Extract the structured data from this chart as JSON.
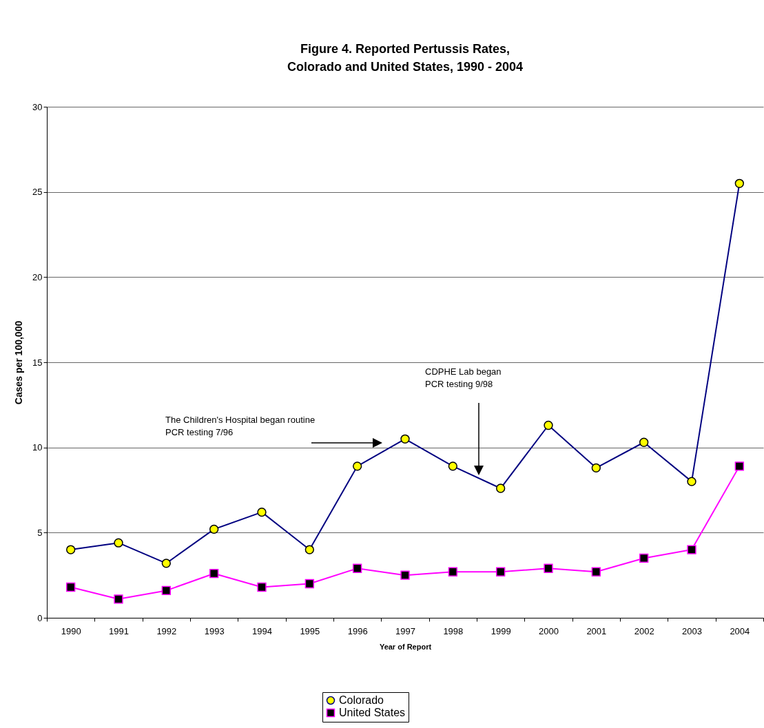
{
  "chart_data": {
    "type": "line",
    "title": "Figure 4.  Reported Pertussis Rates,\nColorado and United States, 1990 - 2004",
    "xlabel": "Year of Report",
    "ylabel": "Cases per 100,000",
    "categories": [
      "1990",
      "1991",
      "1992",
      "1993",
      "1994",
      "1995",
      "1996",
      "1997",
      "1998",
      "1999",
      "2000",
      "2001",
      "2002",
      "2003",
      "2004"
    ],
    "series": [
      {
        "name": "Colorado",
        "color": "#000080",
        "marker": "circle",
        "values": [
          4.0,
          4.4,
          3.2,
          5.2,
          6.2,
          4.0,
          8.9,
          10.5,
          8.9,
          7.6,
          11.3,
          8.8,
          10.3,
          8.0,
          25.5
        ]
      },
      {
        "name": "United States",
        "color": "#ff00ff",
        "marker": "square",
        "values": [
          1.8,
          1.1,
          1.6,
          2.6,
          1.8,
          2.0,
          2.9,
          2.5,
          2.7,
          2.7,
          2.9,
          2.7,
          3.5,
          4.0,
          8.9
        ]
      }
    ],
    "ylim": [
      0,
      30
    ],
    "yticks": [
      0,
      5,
      10,
      15,
      20,
      25,
      30
    ],
    "grid": "y",
    "legend": "bottom",
    "annotations": [
      "The Children's Hospital began routine PCR testing 7/96",
      "CDPHE Lab began PCR testing 9/98"
    ]
  }
}
